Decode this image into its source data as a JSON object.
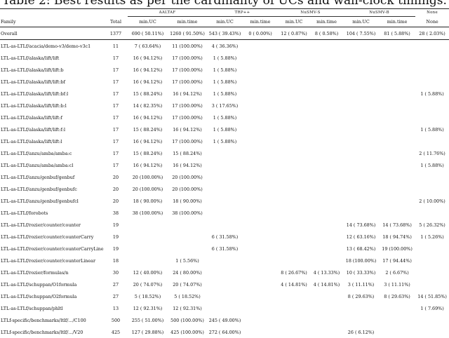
{
  "caption": "Table 2: Best results as per the cardinality of UCs and wall-clock timings.",
  "groups": [
    "AALTAF",
    "TRP++",
    "NuSMV-S",
    "NuSMV-B",
    "None"
  ],
  "subheaders": {
    "family": "Family",
    "total": "Total",
    "cols": [
      "min.UC",
      "min.time",
      "min.UC",
      "min.time",
      "min.UC",
      "min.time",
      "min.UC",
      "min.time",
      "None"
    ]
  },
  "rows": [
    {
      "family": "Overall",
      "total": "1377",
      "cells": [
        "690 ( 50.11%)",
        "1260 ( 91.50%)",
        "543 ( 39.43%)",
        "0 ( 0.00%)",
        "12 ( 0.87%)",
        "8 ( 0.58%)",
        "104 ( 7.55%)",
        "81 ( 5.88%)",
        "28 ( 2.03%)"
      ]
    },
    {
      "family": "LTL-as-LTLf/acacia/demo-v3/demo-v3c1",
      "total": "11",
      "cells": [
        "7 ( 63.64%)",
        "11 (100.00%)",
        "4 ( 36.36%)",
        "",
        "",
        "",
        "",
        "",
        ""
      ]
    },
    {
      "family": "LTL-as-LTLf/alaska/lift/lift",
      "total": "17",
      "cells": [
        "16 ( 94.12%)",
        "17 (100.00%)",
        "1 ( 5.88%)",
        "",
        "",
        "",
        "",
        "",
        ""
      ]
    },
    {
      "family": "LTL-as-LTLf/alaska/lift/lift:b",
      "total": "17",
      "cells": [
        "16 ( 94.12%)",
        "17 (100.00%)",
        "1 ( 5.88%)",
        "",
        "",
        "",
        "",
        "",
        ""
      ]
    },
    {
      "family": "LTL-as-LTLf/alaska/lift/lift:bf",
      "total": "17",
      "cells": [
        "16 ( 94.12%)",
        "17 (100.00%)",
        "1 ( 5.88%)",
        "",
        "",
        "",
        "",
        "",
        ""
      ]
    },
    {
      "family": "LTL-as-LTLf/alaska/lift/lift:bf:l",
      "total": "17",
      "cells": [
        "15 ( 88.24%)",
        "16 ( 94.12%)",
        "1 ( 5.88%)",
        "",
        "",
        "",
        "",
        "",
        "1 ( 5.88%)"
      ]
    },
    {
      "family": "LTL-as-LTLf/alaska/lift/lift:b:l",
      "total": "17",
      "cells": [
        "14 ( 82.35%)",
        "17 (100.00%)",
        "3 ( 17.65%)",
        "",
        "",
        "",
        "",
        "",
        ""
      ]
    },
    {
      "family": "LTL-as-LTLf/alaska/lift/lift:f",
      "total": "17",
      "cells": [
        "16 ( 94.12%)",
        "17 (100.00%)",
        "1 ( 5.88%)",
        "",
        "",
        "",
        "",
        "",
        ""
      ]
    },
    {
      "family": "LTL-as-LTLf/alaska/lift/lift:f:l",
      "total": "17",
      "cells": [
        "15 ( 88.24%)",
        "16 ( 94.12%)",
        "1 ( 5.88%)",
        "",
        "",
        "",
        "",
        "",
        "1 ( 5.88%)"
      ]
    },
    {
      "family": "LTL-as-LTLf/alaska/lift/lift:l",
      "total": "17",
      "cells": [
        "16 ( 94.12%)",
        "17 (100.00%)",
        "1 ( 5.88%)",
        "",
        "",
        "",
        "",
        "",
        ""
      ]
    },
    {
      "family": "LTL-as-LTLf/anzu/amba/amba:c",
      "total": "17",
      "cells": [
        "15 ( 88.24%)",
        "15 ( 88.24%)",
        "",
        "",
        "",
        "",
        "",
        "",
        "2 ( 11.76%)"
      ]
    },
    {
      "family": "LTL-as-LTLf/anzu/amba/amba:cl",
      "total": "17",
      "cells": [
        "16 ( 94.12%)",
        "16 ( 94.12%)",
        "",
        "",
        "",
        "",
        "",
        "",
        "1 ( 5.88%)"
      ]
    },
    {
      "family": "LTL-as-LTLf/anzu/genbuf/genbuf",
      "total": "20",
      "cells": [
        "20 (100.00%)",
        "20 (100.00%)",
        "",
        "",
        "",
        "",
        "",
        "",
        ""
      ]
    },
    {
      "family": "LTL-as-LTLf/anzu/genbuf/genbufc",
      "total": "20",
      "cells": [
        "20 (100.00%)",
        "20 (100.00%)",
        "",
        "",
        "",
        "",
        "",
        "",
        ""
      ]
    },
    {
      "family": "LTL-as-LTLf/anzu/genbuf/genbufcl",
      "total": "20",
      "cells": [
        "18 ( 90.00%)",
        "18 ( 90.00%)",
        "",
        "",
        "",
        "",
        "",
        "",
        "2 ( 10.00%)"
      ]
    },
    {
      "family": "LTL-as-LTLf/forobots",
      "total": "38",
      "cells": [
        "38 (100.00%)",
        "38 (100.00%)",
        "",
        "",
        "",
        "",
        "",
        "",
        ""
      ]
    },
    {
      "family": "LTL-as-LTLf/rozier/counter/counter",
      "total": "19",
      "cells": [
        "",
        "",
        "",
        "",
        "",
        "",
        "14 ( 73.68%)",
        "14 ( 73.68%)",
        "5 ( 26.32%)"
      ]
    },
    {
      "family": "LTL-as-LTLf/rozier/counter/counterCarry",
      "total": "19",
      "cells": [
        "",
        "",
        "6 ( 31.58%)",
        "",
        "",
        "",
        "12 ( 63.16%)",
        "18 ( 94.74%)",
        "1 ( 5.26%)"
      ]
    },
    {
      "family": "LTL-as-LTLf/rozier/counter/counterCarryLinear",
      "total": "19",
      "cells": [
        "",
        "",
        "6 ( 31.58%)",
        "",
        "",
        "",
        "13 ( 68.42%)",
        "19 (100.00%)",
        ""
      ]
    },
    {
      "family": "LTL-as-LTLf/rozier/counter/counterLinear",
      "total": "18",
      "cells": [
        "",
        "1 ( 5.56%)",
        "",
        "",
        "",
        "",
        "18 (100.00%)",
        "17 ( 94.44%)",
        ""
      ]
    },
    {
      "family": "LTL-as-LTLf/rozier/formulas/n",
      "total": "30",
      "cells": [
        "12 ( 40.00%)",
        "24 ( 80.00%)",
        "",
        "",
        "8 ( 26.67%)",
        "4 ( 13.33%)",
        "10 ( 33.33%)",
        "2 ( 6.67%)",
        ""
      ]
    },
    {
      "family": "LTL-as-LTLf/schuppan/O1formula",
      "total": "27",
      "cells": [
        "20 ( 74.07%)",
        "20 ( 74.07%)",
        "",
        "",
        "4 ( 14.81%)",
        "4 ( 14.81%)",
        "3 ( 11.11%)",
        "3 ( 11.11%)",
        ""
      ]
    },
    {
      "family": "LTL-as-LTLf/schuppan/O2formula",
      "total": "27",
      "cells": [
        "5 ( 18.52%)",
        "5 ( 18.52%)",
        "",
        "",
        "",
        "",
        "8 ( 29.63%)",
        "8 ( 29.63%)",
        "14 ( 51.85%)"
      ]
    },
    {
      "family": "LTL-as-LTLf/schuppan/phltl",
      "total": "13",
      "cells": [
        "12 ( 92.31%)",
        "12 ( 92.31%)",
        "",
        "",
        "",
        "",
        "",
        "",
        "1 ( 7.69%)"
      ]
    },
    {
      "family": "LTLf-specific/benchmarks/ltlf/.../C100",
      "total": "500",
      "cells": [
        "255 ( 51.00%)",
        "500 (100.00%)",
        "245 ( 49.00%)",
        "",
        "",
        "",
        "",
        "",
        ""
      ]
    },
    {
      "family": "LTLf-specific/benchmarks/ltlf/.../V20",
      "total": "425",
      "cells": [
        "127 ( 29.88%)",
        "425 (100.00%)",
        "272 ( 64.00%)",
        "",
        "",
        "",
        "26 ( 6.12%)",
        "",
        ""
      ]
    }
  ]
}
